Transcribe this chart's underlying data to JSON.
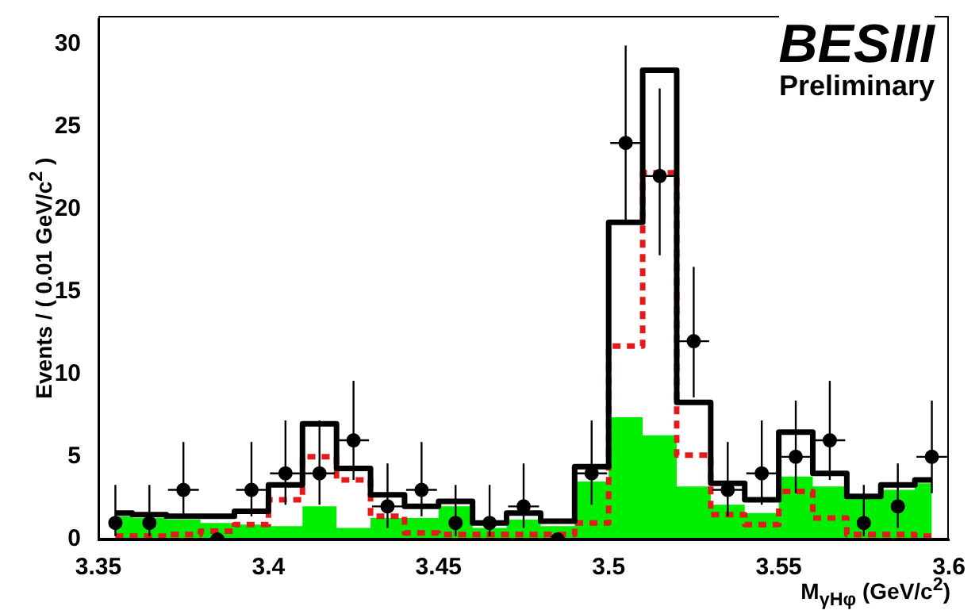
{
  "chart_data": {
    "type": "step",
    "xlabel": "M$_{γHφ}$ (GeV/c$^{2}$)",
    "ylabel": "Events / ( 0.01 GeV/c$^{2}$ )",
    "annotations": [
      "BESIII",
      "Preliminary"
    ],
    "xlim": [
      3.35,
      3.6
    ],
    "xticks": [
      3.35,
      3.4,
      3.45,
      3.5,
      3.55,
      3.6
    ],
    "ylim": [
      0,
      31.5
    ],
    "yticks": [
      0,
      5,
      10,
      15,
      20,
      25,
      30
    ],
    "grid": false,
    "legend": false,
    "series": [
      {
        "type": "area",
        "color": "#00ee00",
        "x": [
          3.355,
          3.365,
          3.375,
          3.385,
          3.395,
          3.405,
          3.415,
          3.425,
          3.435,
          3.445,
          3.455,
          3.465,
          3.475,
          3.485,
          3.495,
          3.505,
          3.515,
          3.525,
          3.535,
          3.545,
          3.555,
          3.565,
          3.575,
          3.585,
          3.595
        ],
        "values": [
          1.4,
          1.3,
          1.2,
          1.0,
          0.9,
          0.8,
          2.0,
          0.7,
          1.3,
          1.3,
          2.0,
          0.7,
          1.2,
          0.8,
          3.5,
          7.4,
          6.3,
          3.2,
          2.1,
          1.6,
          3.8,
          3.2,
          2.5,
          3.0,
          3.4
        ]
      },
      {
        "type": "step",
        "color": "#e31a1c",
        "line_style": "dashed",
        "x": [
          3.355,
          3.365,
          3.375,
          3.385,
          3.395,
          3.405,
          3.415,
          3.425,
          3.435,
          3.445,
          3.455,
          3.465,
          3.475,
          3.485,
          3.495,
          3.505,
          3.515,
          3.525,
          3.535,
          3.545,
          3.555,
          3.565,
          3.575,
          3.585,
          3.595
        ],
        "values": [
          0.2,
          0.2,
          0.3,
          0.5,
          0.9,
          2.4,
          5.0,
          3.6,
          1.4,
          0.4,
          0.3,
          0.3,
          0.3,
          0.3,
          1.0,
          11.7,
          22.2,
          5.1,
          1.5,
          0.9,
          2.9,
          1.3,
          0.3,
          0.3,
          0.2
        ]
      },
      {
        "type": "step",
        "color": "#000000",
        "x": [
          3.355,
          3.365,
          3.375,
          3.385,
          3.395,
          3.405,
          3.415,
          3.425,
          3.435,
          3.445,
          3.455,
          3.465,
          3.475,
          3.485,
          3.495,
          3.505,
          3.515,
          3.525,
          3.535,
          3.545,
          3.555,
          3.565,
          3.575,
          3.585,
          3.595
        ],
        "values": [
          1.6,
          1.5,
          1.4,
          1.4,
          1.7,
          3.3,
          7.0,
          4.3,
          2.7,
          2.0,
          2.3,
          1.0,
          1.6,
          1.1,
          4.4,
          19.2,
          28.4,
          8.3,
          3.4,
          2.4,
          6.5,
          4.0,
          2.6,
          3.3,
          3.6
        ]
      },
      {
        "type": "scatter",
        "color": "#000000",
        "marker": "circle",
        "x": [
          3.355,
          3.365,
          3.375,
          3.385,
          3.395,
          3.405,
          3.415,
          3.425,
          3.435,
          3.445,
          3.455,
          3.465,
          3.475,
          3.485,
          3.495,
          3.505,
          3.515,
          3.525,
          3.535,
          3.545,
          3.555,
          3.565,
          3.575,
          3.585,
          3.595
        ],
        "values": [
          1,
          1,
          3,
          0,
          3,
          4,
          4,
          6,
          2,
          3,
          1,
          1,
          2,
          0,
          4,
          24,
          22,
          12,
          3,
          4,
          5,
          6,
          1,
          2,
          5
        ],
        "errors": [
          [
            0.2,
            3.3
          ],
          [
            0.2,
            3.3
          ],
          [
            1.4,
            5.9
          ],
          null,
          [
            1.4,
            5.9
          ],
          [
            2.1,
            7.2
          ],
          [
            2.1,
            7.2
          ],
          [
            3.6,
            9.6
          ],
          [
            0.7,
            4.6
          ],
          [
            1.4,
            5.9
          ],
          [
            0.2,
            3.3
          ],
          [
            0.2,
            3.3
          ],
          [
            0.7,
            4.6
          ],
          null,
          [
            2.1,
            7.2
          ],
          [
            19.2,
            29.9
          ],
          [
            17.2,
            27.3
          ],
          [
            8.6,
            16.5
          ],
          [
            1.4,
            5.9
          ],
          [
            2.1,
            7.2
          ],
          [
            2.8,
            8.4
          ],
          [
            3.6,
            9.6
          ],
          [
            0.2,
            3.3
          ],
          [
            0.7,
            4.6
          ],
          [
            2.8,
            8.4
          ]
        ],
        "xerrors": [
          null,
          null,
          0.005,
          0.005,
          0.005,
          0.005,
          0.005,
          0.005,
          0.005,
          0.005,
          null,
          null,
          0.005,
          0.005,
          0.005,
          0.005,
          0.005,
          0.005,
          0.005,
          0.005,
          0.005,
          0.005,
          null,
          null,
          0.005
        ]
      }
    ]
  }
}
